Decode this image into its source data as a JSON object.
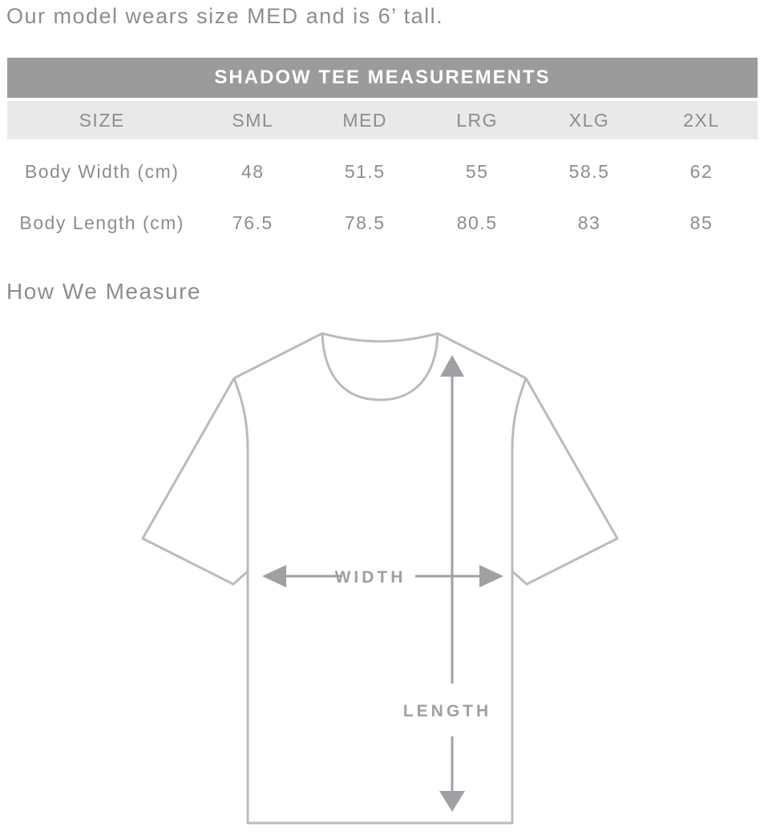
{
  "intro": {
    "text": "Our model wears size MED and is 6’ tall."
  },
  "table": {
    "title": "SHADOW TEE MEASUREMENTS",
    "columns": [
      "SIZE",
      "SML",
      "MED",
      "LRG",
      "XLG",
      "2XL"
    ],
    "rows": [
      {
        "label": "Body Width (cm)",
        "values": [
          "48",
          "51.5",
          "55",
          "58.5",
          "62"
        ]
      },
      {
        "label": "Body Length (cm)",
        "values": [
          "76.5",
          "78.5",
          "80.5",
          "83",
          "85"
        ]
      }
    ]
  },
  "section": {
    "heading": "How We Measure"
  },
  "diagram": {
    "width_label": "WIDTH",
    "length_label": "LENGTH"
  },
  "chart_data": {
    "type": "table",
    "title": "SHADOW TEE MEASUREMENTS",
    "categories": [
      "SML",
      "MED",
      "LRG",
      "XLG",
      "2XL"
    ],
    "series": [
      {
        "name": "Body Width (cm)",
        "values": [
          48,
          51.5,
          55,
          58.5,
          62
        ]
      },
      {
        "name": "Body Length (cm)",
        "values": [
          76.5,
          78.5,
          80.5,
          83,
          85
        ]
      }
    ]
  },
  "colors": {
    "header_bg": "#9b9b9b",
    "header_text": "#ffffff",
    "row_bg": "#e9e9e9",
    "text_gray": "#8d8d8d",
    "outline": "#b9bbbd",
    "arrow": "#9ea0a3"
  }
}
